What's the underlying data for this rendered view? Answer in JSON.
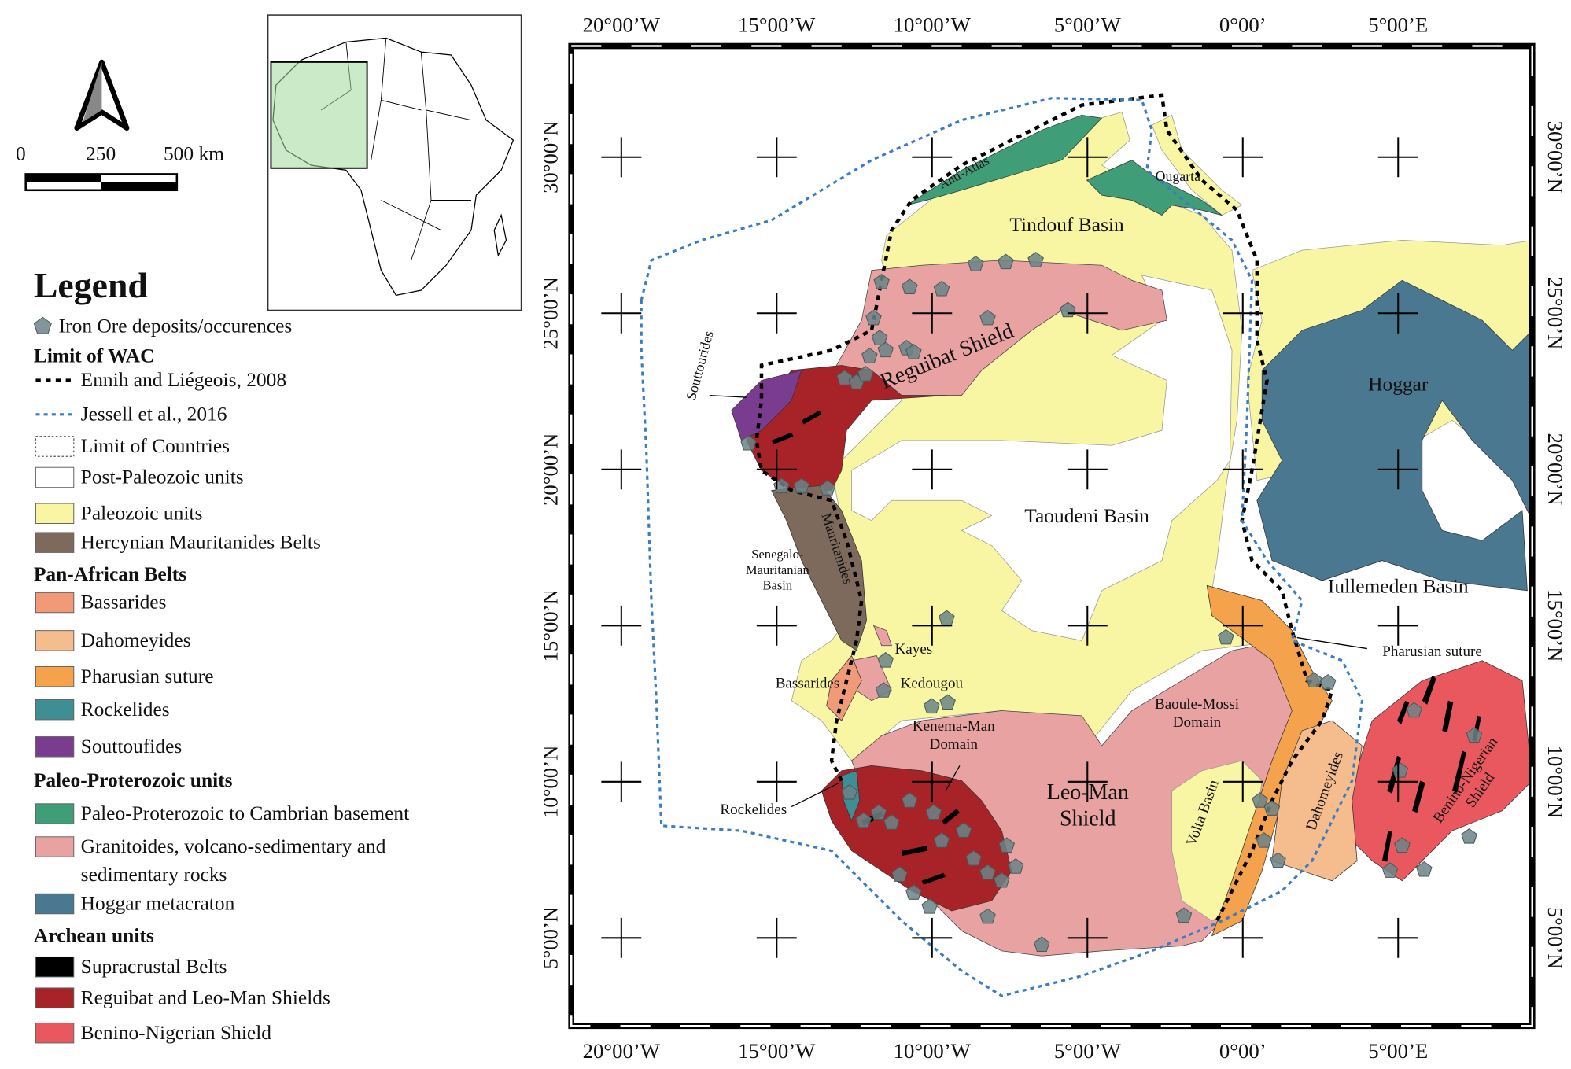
{
  "scale_bar": {
    "labels": [
      "0",
      "250",
      "500 km"
    ]
  },
  "legend": {
    "title": "Legend",
    "deposits": "Iron Ore deposits/occurences",
    "sections": [
      {
        "heading": "Limit of WAC",
        "items": [
          "Ennih and Liégeois, 2008",
          "Jessell et al., 2016",
          "Limit of Countries",
          "Post-Paleozoic units",
          "Paleozoic units",
          "Hercynian Mauritanides Belts"
        ]
      },
      {
        "heading": "Pan-African Belts",
        "items": [
          "Bassarides",
          "Dahomeyides",
          "Pharusian suture",
          "Rockelides",
          "Souttoufides"
        ]
      },
      {
        "heading": "Paleo-Proterozoic units",
        "items": [
          "Paleo-Proterozoic to Cambrian basement",
          [
            "Granitoides, volcano-sedimentary and",
            "sedimentary rocks"
          ],
          "Hoggar metacraton"
        ]
      },
      {
        "heading": "Archean units",
        "items": [
          "Supracrustal Belts",
          "Reguibat and Leo-Man Shields",
          "Benino-Nigerian Shield"
        ]
      }
    ]
  },
  "map": {
    "longitudes": [
      "20°00’W",
      "15°00’W",
      "10°00’W",
      "5°00’W",
      "0°00’",
      "5°00’E"
    ],
    "latitudes": [
      "30°00’N",
      "25°00’N",
      "20°00’N",
      "15°00’N",
      "10°00’N",
      "5°00’N"
    ],
    "labels": [
      [
        "Tindouf Basin"
      ],
      [
        "Anti-Atlas"
      ],
      [
        "Ougarta"
      ],
      [
        "Reguibat Shield"
      ],
      [
        "Souttourides"
      ],
      [
        "Hoggar"
      ],
      [
        "Taoudeni Basin"
      ],
      [
        "Iullemeden Basin"
      ],
      [
        "Senegalo-",
        "Mauritanian",
        "Basin"
      ],
      [
        "Mauritanides"
      ],
      [
        "Kayes"
      ],
      [
        "Kedougou"
      ],
      [
        "Bassarides"
      ],
      [
        "Pharusian suture"
      ],
      [
        "Baoule-Mossi",
        "Domain"
      ],
      [
        "Kenema-Man",
        "Domain"
      ],
      [
        "Leo-Man",
        "Shield"
      ],
      [
        "Volta Basin"
      ],
      [
        "Dahomeyides"
      ],
      [
        "Benino-Nigerian",
        "Shield"
      ],
      [
        "Rockelides"
      ]
    ]
  }
}
